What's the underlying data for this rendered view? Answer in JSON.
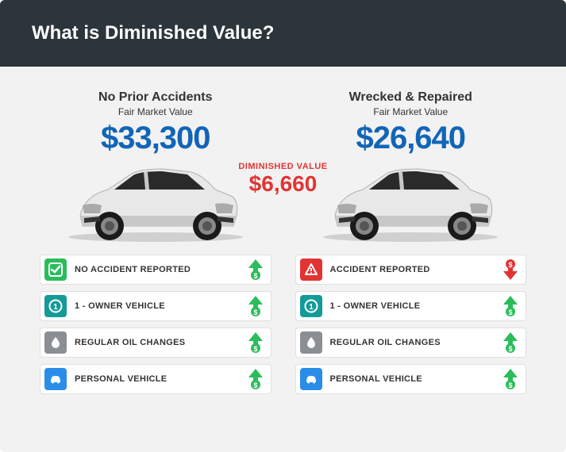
{
  "header": {
    "title": "What is Diminished Value?"
  },
  "diminished": {
    "label": "DIMINISHED VALUE",
    "value": "$6,660",
    "color": "#e23434"
  },
  "left": {
    "title": "No Prior Accidents",
    "subtitle": "Fair Market Value",
    "price": "$33,300",
    "price_color": "#1165b8",
    "factors": [
      {
        "icon": "check",
        "icon_bg": "#2bbd5b",
        "text": "NO ACCIDENT REPORTED",
        "arrow": "up",
        "arrow_color": "#2bbd5b"
      },
      {
        "icon": "one",
        "icon_bg": "#159a9a",
        "text": "1 - OWNER VEHICLE",
        "arrow": "up",
        "arrow_color": "#2bbd5b"
      },
      {
        "icon": "drop",
        "icon_bg": "#8a8f94",
        "text": "REGULAR OIL CHANGES",
        "arrow": "up",
        "arrow_color": "#2bbd5b"
      },
      {
        "icon": "car",
        "icon_bg": "#2a8de8",
        "text": "PERSONAL VEHICLE",
        "arrow": "up",
        "arrow_color": "#2bbd5b"
      }
    ]
  },
  "right": {
    "title": "Wrecked & Repaired",
    "subtitle": "Fair Market Value",
    "price": "$26,640",
    "price_color": "#1165b8",
    "factors": [
      {
        "icon": "alert",
        "icon_bg": "#e23434",
        "text": "ACCIDENT REPORTED",
        "arrow": "down",
        "arrow_color": "#e23434"
      },
      {
        "icon": "one",
        "icon_bg": "#159a9a",
        "text": "1 - OWNER VEHICLE",
        "arrow": "up",
        "arrow_color": "#2bbd5b"
      },
      {
        "icon": "drop",
        "icon_bg": "#8a8f94",
        "text": "REGULAR OIL CHANGES",
        "arrow": "up",
        "arrow_color": "#2bbd5b"
      },
      {
        "icon": "car",
        "icon_bg": "#2a8de8",
        "text": "PERSONAL VEHICLE",
        "arrow": "up",
        "arrow_color": "#2bbd5b"
      }
    ]
  },
  "car_colors": {
    "body": "#e8e8e8",
    "body_dark": "#c8c8c8",
    "window": "#2a2a2a",
    "tire": "#1a1a1a",
    "rim": "#888"
  }
}
